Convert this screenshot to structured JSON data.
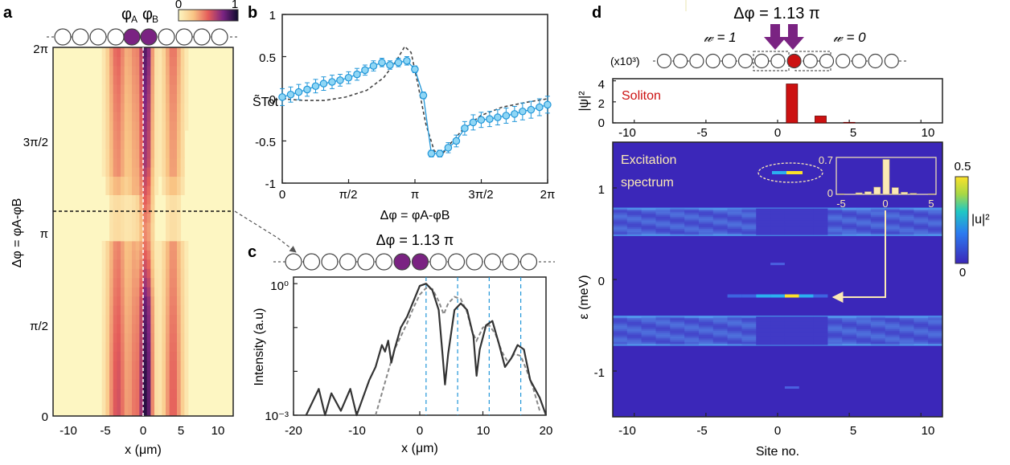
{
  "panels": {
    "a": {
      "letter": "a",
      "colorbar_ticks": [
        "0",
        "1"
      ],
      "chain_labels": [
        "φ",
        "A",
        "φ",
        "B"
      ],
      "ylabel": "Δφ = φA-φB",
      "xlabel": "x (μm)",
      "yticks": [
        "2π",
        "3π/2",
        "π",
        "π/2",
        "0"
      ],
      "xticks": [
        "-10",
        "-5",
        "0",
        "5",
        "10"
      ]
    },
    "b": {
      "letter": "b",
      "ylabel": "S̃Tot",
      "xlabel": "Δφ = φA-φB",
      "yticks": [
        "1",
        "0.5",
        "0",
        "-0.5",
        "-1"
      ],
      "xticks": [
        "0",
        "π/2",
        "π",
        "3π/2",
        "2π"
      ]
    },
    "c": {
      "letter": "c",
      "title": "Δφ = 1.13 π",
      "ylabel": "Intensity (a.u)",
      "xlabel": "x (μm)",
      "yticks": [
        "10⁰",
        "10⁻³"
      ],
      "xticks": [
        "-20",
        "-10",
        "0",
        "10",
        "20"
      ]
    },
    "d": {
      "letter": "d",
      "title": "Δφ = 1.13 π",
      "winding_left": "𝓌 = 1",
      "winding_right": "𝓌 = 0",
      "scale_note": "(x10³)",
      "top_ylabel": "|ψ|²",
      "top_label": "Soliton",
      "top_yticks": [
        "4",
        "2",
        "0"
      ],
      "top_xticks": [
        "-10",
        "-5",
        "0",
        "5",
        "10"
      ],
      "main_label_1": "Excitation",
      "main_label_2": "spectrum",
      "main_ylabel": "ε (meV)",
      "main_xlabel": "Site no.",
      "main_yticks": [
        "1",
        "0",
        "-1"
      ],
      "main_xticks": [
        "-10",
        "-5",
        "0",
        "5",
        "10"
      ],
      "inset_yticks": [
        "0.7",
        "0"
      ],
      "inset_xticks": [
        "-5",
        "0",
        "5"
      ],
      "colorbar_ticks": [
        "0.5",
        "0"
      ],
      "colorbar_label": "|u|²"
    }
  },
  "colors": {
    "bright_bg": "#fdf6c2",
    "accent_purple": "#7a2382",
    "data_blue": "#2196d8",
    "marker_fill": "#8fd6f5",
    "soliton_red": "#cc1111",
    "spectrum_bg": "#3b27b9"
  },
  "chart_data": [
    {
      "panel": "a",
      "type": "heatmap",
      "x_range": [
        -12,
        12
      ],
      "y_range": [
        0,
        6.283
      ],
      "xlabel": "x (μm)",
      "ylabel": "Δφ = φA-φB",
      "colorbar_range": [
        0,
        1
      ],
      "dashed_reference_y": 3.55
    },
    {
      "panel": "b",
      "type": "scatter",
      "xlim": [
        0,
        6.283
      ],
      "ylim": [
        -1,
        1
      ],
      "xlabel": "Δφ = φA-φB",
      "ylabel": "S̃Tot",
      "series": [
        {
          "style": "markers-with-errorbars",
          "x": [
            0.0,
            0.2,
            0.39,
            0.59,
            0.79,
            0.98,
            1.18,
            1.37,
            1.57,
            1.77,
            1.96,
            2.16,
            2.36,
            2.55,
            2.75,
            2.95,
            3.14,
            3.34,
            3.53,
            3.73,
            3.93,
            4.12,
            4.32,
            4.52,
            4.71,
            4.91,
            5.1,
            5.3,
            5.5,
            5.69,
            5.89,
            6.09,
            6.28
          ],
          "y": [
            0.02,
            0.05,
            0.08,
            0.11,
            0.15,
            0.18,
            0.2,
            0.22,
            0.25,
            0.29,
            0.34,
            0.39,
            0.43,
            0.4,
            0.43,
            0.45,
            0.35,
            0.04,
            -0.65,
            -0.65,
            -0.58,
            -0.5,
            -0.35,
            -0.28,
            -0.25,
            -0.24,
            -0.22,
            -0.2,
            -0.18,
            -0.15,
            -0.13,
            -0.1,
            -0.07
          ],
          "err": [
            0.1,
            0.09,
            0.09,
            0.08,
            0.08,
            0.08,
            0.08,
            0.07,
            0.07,
            0.07,
            0.06,
            0.06,
            0.05,
            0.05,
            0.05,
            0.05,
            0.04,
            0.04,
            0.04,
            0.04,
            0.06,
            0.07,
            0.08,
            0.09,
            0.09,
            0.09,
            0.09,
            0.09,
            0.09,
            0.1,
            0.1,
            0.1,
            0.1
          ]
        },
        {
          "style": "dashed",
          "x": [
            0.0,
            0.5,
            1.0,
            1.5,
            2.0,
            2.4,
            2.7,
            2.9,
            3.05,
            3.2,
            3.4,
            3.6,
            3.8,
            4.0,
            4.3,
            4.7,
            5.2,
            5.8,
            6.28
          ],
          "y": [
            0.0,
            -0.02,
            -0.02,
            0.02,
            0.1,
            0.25,
            0.45,
            0.62,
            0.55,
            0.2,
            -0.3,
            -0.62,
            -0.65,
            -0.52,
            -0.35,
            -0.2,
            -0.1,
            -0.04,
            0.0
          ]
        }
      ]
    },
    {
      "panel": "c",
      "type": "line",
      "xlim": [
        -20,
        20
      ],
      "ylim_log10": [
        -3,
        0.15
      ],
      "xlabel": "x (μm)",
      "ylabel": "Intensity (a.u)",
      "vertical_dashed_x": [
        1,
        6,
        11,
        16
      ],
      "series": [
        {
          "style": "solid",
          "x": [
            -18.0,
            -16.0,
            -15.0,
            -14.0,
            -12.5,
            -11.0,
            -10.0,
            -9.0,
            -8.0,
            -7.0,
            -6.0,
            -5.5,
            -5.0,
            -4.5,
            -4.0,
            -3.0,
            -2.0,
            -1.0,
            0.0,
            1.0,
            2.0,
            3.0,
            3.6,
            4.0,
            4.5,
            5.5,
            6.5,
            7.5,
            8.5,
            9.0,
            9.5,
            10.5,
            11.5,
            12.5,
            13.5,
            14.5,
            15.5,
            16.5,
            17.5,
            19.0,
            20.0
          ],
          "y_log10": [
            -3.0,
            -2.4,
            -3.0,
            -2.5,
            -2.9,
            -2.4,
            -3.0,
            -2.6,
            -2.2,
            -1.9,
            -1.4,
            -1.55,
            -1.3,
            -1.8,
            -1.5,
            -1.0,
            -0.75,
            -0.4,
            -0.05,
            0.0,
            -0.15,
            -0.6,
            -1.6,
            -2.3,
            -1.6,
            -0.6,
            -0.45,
            -0.6,
            -1.2,
            -2.1,
            -1.5,
            -0.95,
            -0.85,
            -1.35,
            -1.9,
            -1.7,
            -1.4,
            -1.5,
            -2.2,
            -2.6,
            -3.0
          ]
        },
        {
          "style": "dashed",
          "x": [
            -7.0,
            -6.0,
            -5.0,
            -4.0,
            -3.0,
            -2.0,
            -1.0,
            0.0,
            1.0,
            2.0,
            3.0,
            3.8,
            4.5,
            5.5,
            6.5,
            7.5,
            8.3,
            9.0,
            10.0,
            11.0,
            12.0,
            13.0,
            14.0,
            15.0,
            16.0,
            17.0,
            18.0,
            19.0
          ],
          "y_log10": [
            -3.0,
            -2.5,
            -2.0,
            -1.5,
            -1.2,
            -0.9,
            -0.55,
            -0.25,
            -0.1,
            -0.12,
            -0.4,
            -0.7,
            -0.45,
            -0.3,
            -0.35,
            -0.65,
            -1.1,
            -1.3,
            -1.0,
            -0.95,
            -1.15,
            -1.55,
            -1.8,
            -1.6,
            -1.65,
            -2.0,
            -2.4,
            -2.9
          ]
        }
      ]
    },
    {
      "panel": "d-top",
      "type": "bar",
      "xlim": [
        -11.5,
        11.5
      ],
      "ylim": [
        0,
        4.2
      ],
      "ylabel": "|ψ|²",
      "categories": [
        1,
        3,
        5
      ],
      "values": [
        3.7,
        0.65,
        0.05
      ]
    },
    {
      "panel": "d-main",
      "type": "heatmap",
      "x_range": [
        -11.5,
        11.5
      ],
      "y_range": [
        -1.5,
        1.5
      ],
      "xlabel": "Site no.",
      "ylabel": "ε (meV)",
      "bands_meV": [
        [
          0.48,
          0.78
        ],
        [
          -0.72,
          -0.4
        ]
      ],
      "in_gap_state_meV": -0.18,
      "colorbar_range": [
        0,
        0.5
      ],
      "colorbar_label": "|u|²"
    },
    {
      "panel": "d-inset",
      "type": "bar",
      "xlim": [
        -5.5,
        5.5
      ],
      "ylim": [
        0,
        0.72
      ],
      "categories": [
        -5,
        -3,
        -2,
        -1,
        0,
        1,
        2,
        3,
        5
      ],
      "values": [
        0.01,
        0.03,
        0.05,
        0.14,
        0.68,
        0.13,
        0.04,
        0.02,
        0.01
      ]
    }
  ]
}
